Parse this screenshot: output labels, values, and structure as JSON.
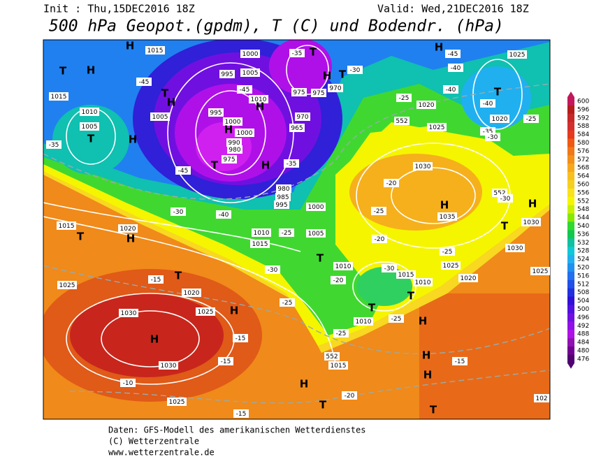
{
  "header": {
    "init": "Init : Thu,15DEC2016 18Z",
    "valid": "Valid: Wed,21DEC2016 18Z",
    "title": "500 hPa Geopot.(gpdm), T (C) und Bodendr. (hPa)"
  },
  "map": {
    "labels": [
      "H",
      "1015",
      "H",
      "T",
      "1015",
      "1010",
      "1005",
      "T",
      "-35",
      "-45",
      "T",
      "H",
      "1005",
      "H",
      "-45",
      "1000",
      "995",
      "1005",
      "-45",
      "1010",
      "H",
      "995",
      "1000",
      "H",
      "1000",
      "990",
      "980",
      "975",
      "T",
      "H",
      "-35",
      "970",
      "965",
      "-35",
      "T",
      "975",
      "975",
      "970",
      "H",
      "T",
      "-30",
      "-25",
      "1020",
      "552",
      "1025",
      "H",
      "-45",
      "-40",
      "1025",
      "-40",
      "-40",
      "T",
      "1020",
      "-35",
      "-30",
      "-25",
      "1030",
      "-20",
      "H",
      "1035",
      "552",
      "-30",
      "H",
      "T",
      "1030",
      "1030",
      "1025",
      "1000",
      "980",
      "985",
      "995",
      "-40",
      "-30",
      "1015",
      "T",
      "1020",
      "H",
      "1010",
      "1015",
      "-25",
      "1005",
      "T",
      "-20",
      "-25",
      "1010",
      "1025",
      "-30",
      "-15",
      "T",
      "1020",
      "-20",
      "-30",
      "1015",
      "1010",
      "1020",
      "1025",
      "1030",
      "1025",
      "H",
      "-25",
      "-15",
      "H",
      "-25",
      "1010",
      "T",
      "-25",
      "552",
      "1015",
      "H",
      "T",
      "1030",
      "-15",
      "-10",
      "1025",
      "H",
      "T",
      "-20",
      "H",
      "H",
      "-15",
      "T",
      "-15",
      "102",
      "-25"
    ]
  },
  "colorbar": {
    "labels": [
      600,
      596,
      592,
      588,
      584,
      580,
      576,
      572,
      568,
      564,
      560,
      556,
      552,
      548,
      544,
      540,
      536,
      532,
      528,
      524,
      520,
      516,
      512,
      508,
      504,
      500,
      496,
      492,
      488,
      484,
      480,
      476
    ],
    "colors": [
      "#c2185b",
      "#b71c1c",
      "#c62828",
      "#d32f2f",
      "#e53a1e",
      "#ee5a14",
      "#f07818",
      "#f39019",
      "#f6a81c",
      "#f8c01f",
      "#f5d020",
      "#f8e21c",
      "#f5f500",
      "#c8f000",
      "#88e800",
      "#30d830",
      "#10c850",
      "#10c0a0",
      "#10c8d8",
      "#20b0f0",
      "#2090f0",
      "#2070f0",
      "#2050e8",
      "#2030e0",
      "#3010d8",
      "#5010e0",
      "#7010e0",
      "#9010e8",
      "#b010e8",
      "#9010b0",
      "#700090",
      "#500070"
    ]
  },
  "footer": {
    "line1": "Daten: GFS-Modell des amerikanischen Wetterdienstes",
    "line2": "(C) Wetterzentrale",
    "line3": "www.wetterzentrale.de"
  }
}
